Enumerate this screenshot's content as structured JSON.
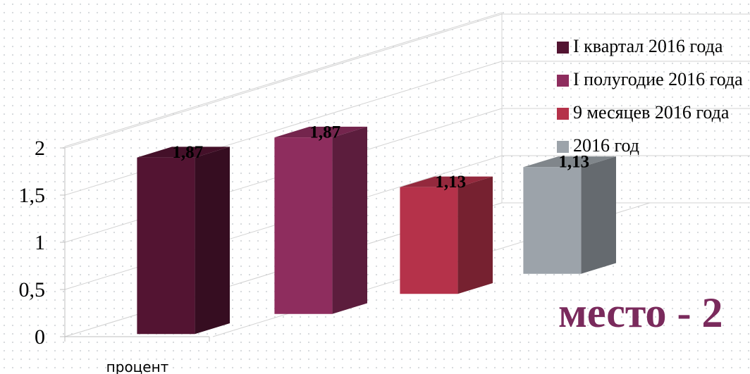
{
  "chart_data": {
    "type": "bar",
    "categories": [
      "процент"
    ],
    "series": [
      {
        "name": "I квартал 2016 года",
        "values": [
          1.87
        ],
        "label": "1,87",
        "color": "#531432"
      },
      {
        "name": "I полугодие 2016 года",
        "values": [
          1.87
        ],
        "label": "1,87",
        "color": "#8e2d5e"
      },
      {
        "name": "9 месяцев 2016 года",
        "values": [
          1.13
        ],
        "label": "1,13",
        "color": "#b5324a"
      },
      {
        "name": "2016 год",
        "values": [
          1.13
        ],
        "label": "1,13",
        "color": "#9ca3aa"
      }
    ],
    "y_ticks": [
      "0",
      "0,5",
      "1",
      "1,5",
      "2"
    ],
    "ylim": [
      0,
      2
    ],
    "grid": true,
    "legend_position": "right",
    "style": "3d-clustered-column"
  },
  "annotation": {
    "place": "место - 2"
  }
}
